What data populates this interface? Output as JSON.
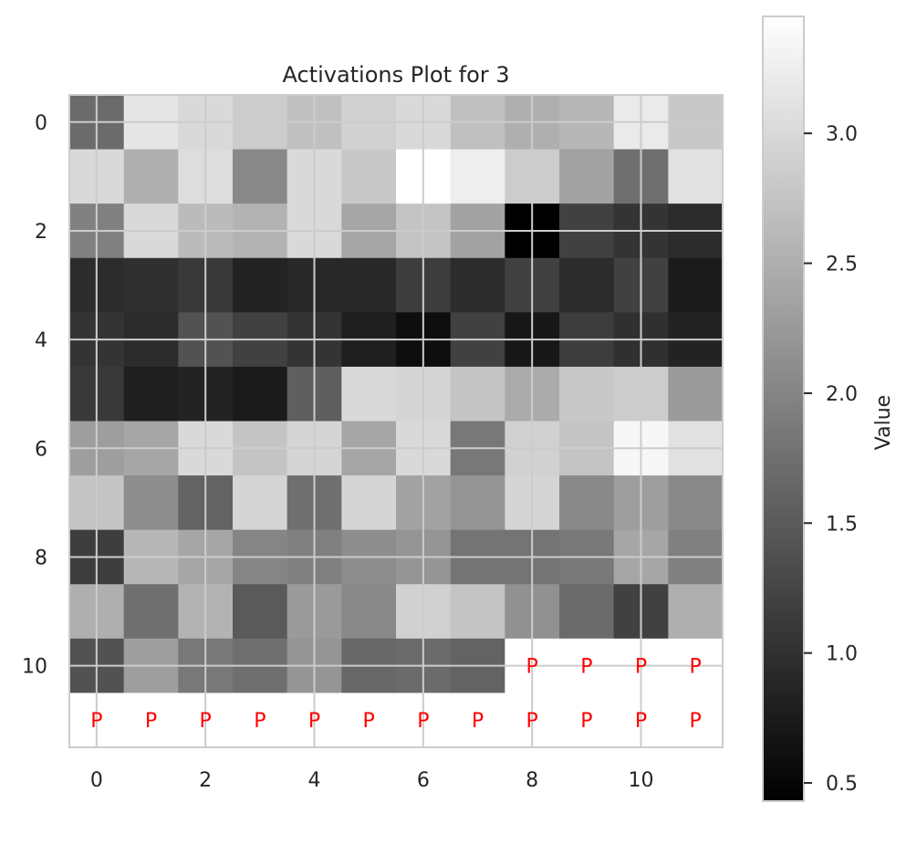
{
  "chart_data": {
    "type": "heatmap",
    "title": "Activations Plot for 3",
    "colorbar_label": "Value",
    "colormap": "gray",
    "pad_marker": "P",
    "pad_color": "#ff0000",
    "grid": true,
    "value_range": [
      0.43,
      3.45
    ],
    "x_ticks": [
      "0",
      "2",
      "4",
      "6",
      "8",
      "10"
    ],
    "y_ticks": [
      "0",
      "2",
      "4",
      "6",
      "8",
      "10"
    ],
    "colorbar_ticks": [
      "0.5",
      "1.0",
      "1.5",
      "2.0",
      "2.5",
      "3.0"
    ],
    "colorbar_tick_values": [
      0.5,
      1.0,
      1.5,
      2.0,
      2.5,
      3.0
    ],
    "n_rows": 12,
    "n_cols": 12,
    "values": [
      [
        1.7,
        3.15,
        3.0,
        2.85,
        2.7,
        2.9,
        3.0,
        2.7,
        2.5,
        2.6,
        3.2,
        2.8
      ],
      [
        3.0,
        2.5,
        3.05,
        2.05,
        3.0,
        2.8,
        3.45,
        3.25,
        2.85,
        2.35,
        1.75,
        3.1
      ],
      [
        1.95,
        3.0,
        2.65,
        2.55,
        3.0,
        2.4,
        2.75,
        2.35,
        0.43,
        1.2,
        1.05,
        0.95
      ],
      [
        0.95,
        1.0,
        1.1,
        0.85,
        0.9,
        0.9,
        1.15,
        0.95,
        1.2,
        0.95,
        1.2,
        0.75
      ],
      [
        1.05,
        0.95,
        1.4,
        1.2,
        1.05,
        0.8,
        0.6,
        1.2,
        0.7,
        1.15,
        1.0,
        0.85
      ],
      [
        1.1,
        0.8,
        0.85,
        0.75,
        1.55,
        3.0,
        2.95,
        2.75,
        2.45,
        2.8,
        2.85,
        2.25
      ],
      [
        2.3,
        2.4,
        3.0,
        2.75,
        2.95,
        2.4,
        3.0,
        1.85,
        2.9,
        2.75,
        3.35,
        3.1
      ],
      [
        2.75,
        2.1,
        1.6,
        2.95,
        1.75,
        2.95,
        2.35,
        2.2,
        2.95,
        2.05,
        2.3,
        2.05
      ],
      [
        1.15,
        2.6,
        2.4,
        2.0,
        1.95,
        2.1,
        2.2,
        1.8,
        1.8,
        1.85,
        2.4,
        1.95
      ],
      [
        2.5,
        1.75,
        2.55,
        1.5,
        2.25,
        2.05,
        2.9,
        2.75,
        2.15,
        1.7,
        1.2,
        2.5
      ],
      [
        1.4,
        2.3,
        1.85,
        1.75,
        2.2,
        1.65,
        1.7,
        1.6,
        null,
        null,
        null,
        null
      ],
      [
        null,
        null,
        null,
        null,
        null,
        null,
        null,
        null,
        null,
        null,
        null,
        null
      ]
    ]
  }
}
